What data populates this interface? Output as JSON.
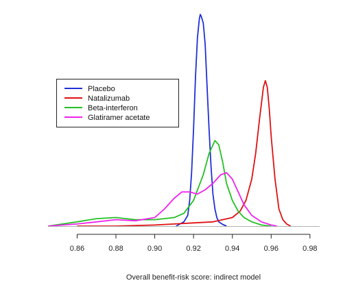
{
  "chart_data": {
    "type": "line",
    "title": "",
    "xlabel": "Overall benefit-risk score: indirect model",
    "ylabel": "",
    "xlim": [
      0.845,
      0.985
    ],
    "ylim": [
      0,
      1
    ],
    "xticks": [
      "0.86",
      "0.88",
      "0.90",
      "0.92",
      "0.94",
      "0.96",
      "0.98"
    ],
    "grid": false,
    "legend_position": "left",
    "series": [
      {
        "name": "Placebo",
        "color": "#1f2fd8",
        "x": [
          0.911,
          0.913,
          0.915,
          0.917,
          0.918,
          0.919,
          0.92,
          0.921,
          0.922,
          0.923,
          0.9235,
          0.924,
          0.925,
          0.926,
          0.927,
          0.928,
          0.929,
          0.93,
          0.931,
          0.932,
          0.933,
          0.935,
          0.937
        ],
        "y": [
          0.0,
          0.01,
          0.02,
          0.05,
          0.12,
          0.25,
          0.45,
          0.7,
          0.88,
          0.97,
          0.99,
          0.98,
          0.95,
          0.85,
          0.65,
          0.45,
          0.28,
          0.15,
          0.08,
          0.04,
          0.02,
          0.008,
          0.0
        ]
      },
      {
        "name": "Natalizumab",
        "color": "#e01010",
        "x": [
          0.86,
          0.88,
          0.9,
          0.91,
          0.92,
          0.93,
          0.935,
          0.94,
          0.944,
          0.947,
          0.95,
          0.952,
          0.954,
          0.956,
          0.957,
          0.958,
          0.959,
          0.96,
          0.962,
          0.964,
          0.966,
          0.968,
          0.97
        ],
        "y": [
          0.0,
          0.0,
          0.005,
          0.01,
          0.015,
          0.02,
          0.03,
          0.04,
          0.07,
          0.12,
          0.22,
          0.34,
          0.5,
          0.65,
          0.68,
          0.65,
          0.55,
          0.42,
          0.22,
          0.08,
          0.03,
          0.01,
          0.0
        ]
      },
      {
        "name": "Beta-interferon",
        "color": "#22c022",
        "x": [
          0.845,
          0.86,
          0.87,
          0.88,
          0.89,
          0.9,
          0.91,
          0.915,
          0.92,
          0.925,
          0.928,
          0.931,
          0.933,
          0.935,
          0.937,
          0.94,
          0.943,
          0.946,
          0.95,
          0.955,
          0.96
        ],
        "y": [
          0.0,
          0.02,
          0.035,
          0.04,
          0.03,
          0.03,
          0.04,
          0.06,
          0.12,
          0.24,
          0.34,
          0.4,
          0.38,
          0.3,
          0.2,
          0.12,
          0.07,
          0.04,
          0.02,
          0.005,
          0.0
        ]
      },
      {
        "name": "Glatiramer acetate",
        "color": "#ee22ee",
        "x": [
          0.845,
          0.86,
          0.87,
          0.88,
          0.89,
          0.9,
          0.905,
          0.91,
          0.914,
          0.918,
          0.922,
          0.926,
          0.93,
          0.934,
          0.937,
          0.94,
          0.943,
          0.946,
          0.95,
          0.955,
          0.96,
          0.963
        ],
        "y": [
          0.0,
          0.01,
          0.02,
          0.03,
          0.025,
          0.04,
          0.08,
          0.13,
          0.16,
          0.16,
          0.15,
          0.17,
          0.2,
          0.24,
          0.25,
          0.22,
          0.16,
          0.1,
          0.05,
          0.02,
          0.005,
          0.0
        ]
      }
    ]
  }
}
